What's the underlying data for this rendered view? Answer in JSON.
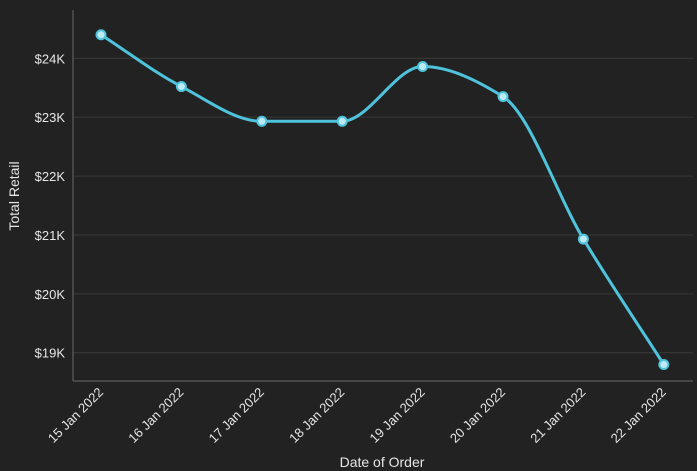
{
  "chart_data": {
    "type": "line",
    "title": "",
    "xlabel": "Date of Order",
    "ylabel": "Total Retail",
    "categories": [
      "15 Jan 2022",
      "16 Jan 2022",
      "17 Jan 2022",
      "18 Jan 2022",
      "19 Jan 2022",
      "20 Jan 2022",
      "21 Jan 2022",
      "22 Jan 2022"
    ],
    "series": [
      {
        "values": [
          24400,
          23520,
          22930,
          22930,
          23860,
          23350,
          20930,
          18800
        ]
      }
    ],
    "y_ticks": [
      19000,
      20000,
      21000,
      22000,
      23000,
      24000
    ],
    "y_tick_labels": [
      "$19K",
      "$20K",
      "$21K",
      "$22K",
      "$23K",
      "$24K"
    ],
    "ylim": [
      18520,
      24820
    ],
    "grid": true,
    "legend": "none",
    "colors": {
      "background": "#222222",
      "line": "#4fc3dc",
      "marker_fill": "#bdeaf5",
      "grid": "#3a3a3a",
      "axis": "#6a6a6a",
      "text": "#e6e6e6"
    }
  }
}
